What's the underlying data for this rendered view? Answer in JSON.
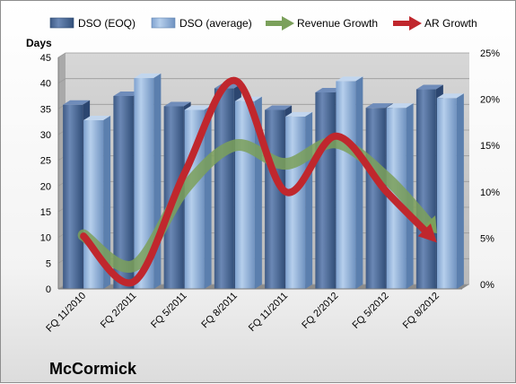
{
  "chart_data": {
    "type": "bar",
    "company": "McCormick",
    "y_left_label": "Days",
    "y_left_range": [
      0,
      45
    ],
    "y_left_ticks": [
      "0",
      "5",
      "10",
      "15",
      "20",
      "25",
      "30",
      "35",
      "40",
      "45"
    ],
    "y_right_range": [
      0,
      25
    ],
    "y_right_ticks": [
      "0%",
      "5%",
      "10%",
      "15%",
      "20%",
      "25%"
    ],
    "categories": [
      "FQ 11/2010",
      "FQ 2/2011",
      "FQ 5/2011",
      "FQ 8/2011",
      "FQ 11/2011",
      "FQ 2/2012",
      "FQ 5/2012",
      "FQ 8/2012"
    ],
    "series": [
      {
        "name": "DSO (EOQ)",
        "type": "bar",
        "axis": "left",
        "color": "#4f6d9b",
        "values": [
          35.8,
          37.5,
          35.5,
          39.0,
          34.8,
          38.2,
          35.2,
          38.8
        ]
      },
      {
        "name": "DSO (average)",
        "type": "bar",
        "axis": "left",
        "color": "#8fb1da",
        "values": [
          32.8,
          41.0,
          34.8,
          36.5,
          33.5,
          40.4,
          35.2,
          37.1
        ]
      },
      {
        "name": "Revenue Growth",
        "type": "line",
        "axis": "right",
        "color": "#7ba05b",
        "values": [
          5.8,
          2.5,
          10.8,
          15.5,
          13.5,
          15.8,
          12.0,
          6.0
        ]
      },
      {
        "name": "AR Growth",
        "type": "line",
        "axis": "right",
        "color": "#c0272d",
        "values": [
          5.7,
          0.8,
          12.5,
          22.5,
          10.5,
          16.5,
          10.5,
          5.0
        ]
      }
    ],
    "legend_position": "top",
    "grid": true
  }
}
